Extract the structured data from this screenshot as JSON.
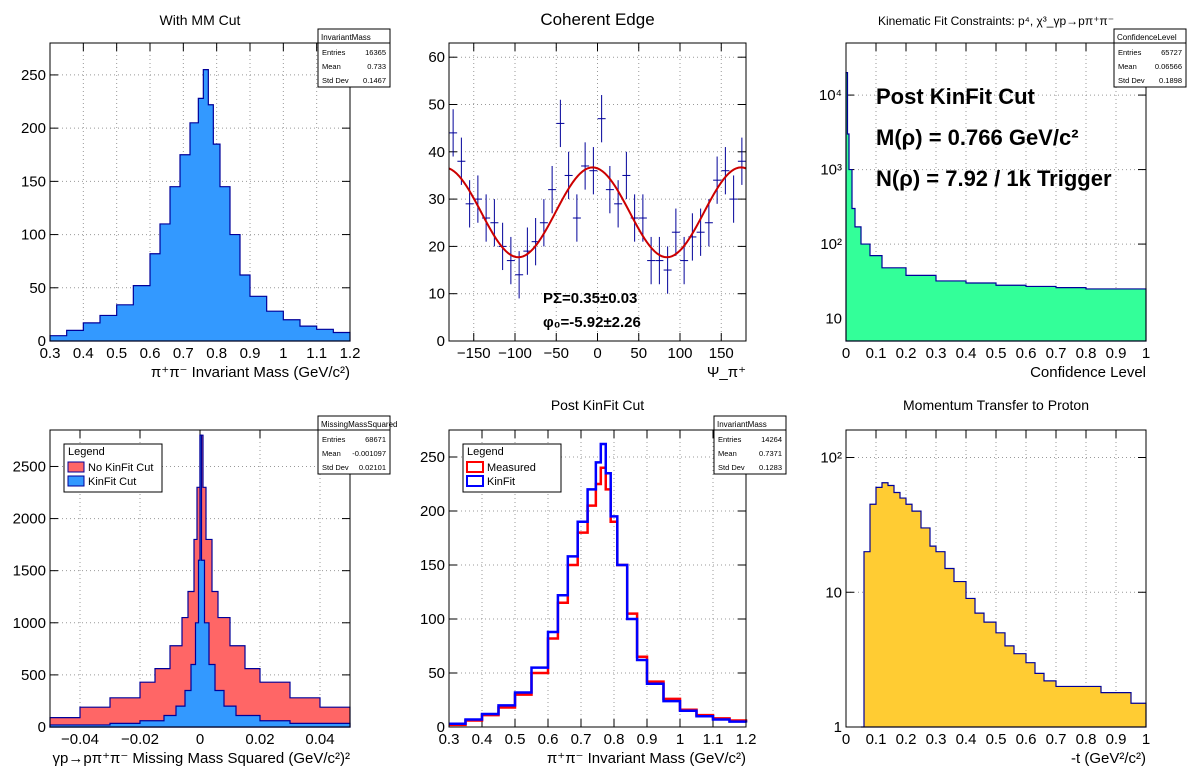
{
  "colors": {
    "blue_fill": "#3399ff",
    "blue_line": "#000099",
    "red_fill": "#ff6666",
    "red_line": "#cc0000",
    "green_fill": "#33ff99",
    "yellow_fill": "#ffcc33",
    "fit_line": "#cc0000",
    "measured": "#ff0000",
    "kinfit": "#0000ff"
  },
  "chart_data": [
    {
      "type": "bar",
      "title": "With MM Cut",
      "xlabel": "π⁺π⁻ Invariant Mass (GeV/c²)",
      "ylabel": "",
      "xlim": [
        0.3,
        1.2
      ],
      "ylim": [
        0,
        280
      ],
      "xticks": [
        "0.3",
        "0.4",
        "0.5",
        "0.6",
        "0.7",
        "0.8",
        "0.9",
        "1",
        "1.1",
        "1.2"
      ],
      "xtick_values": [
        0.3,
        0.4,
        0.5,
        0.6,
        0.7,
        0.8,
        0.9,
        1.0,
        1.1,
        1.2
      ],
      "yticks": [
        "0",
        "50",
        "100",
        "150",
        "200",
        "250"
      ],
      "ytick_values": [
        0,
        50,
        100,
        150,
        200,
        250
      ],
      "stats": {
        "name": "InvariantMass",
        "rows": [
          [
            "Entries",
            "16365"
          ],
          [
            "Mean",
            "0.733"
          ],
          [
            "Std Dev",
            "0.1467"
          ]
        ]
      },
      "series": [
        {
          "name": "",
          "fill": "#3399ff",
          "line": "#000099",
          "x": [
            0.3,
            0.35,
            0.4,
            0.45,
            0.5,
            0.55,
            0.6,
            0.63,
            0.66,
            0.69,
            0.72,
            0.745,
            0.76,
            0.775,
            0.79,
            0.81,
            0.84,
            0.87,
            0.9,
            0.95,
            1.0,
            1.05,
            1.1,
            1.15,
            1.2
          ],
          "values": [
            5,
            10,
            17,
            24,
            34,
            52,
            82,
            110,
            145,
            175,
            205,
            228,
            255,
            222,
            185,
            145,
            100,
            62,
            42,
            28,
            20,
            14,
            11,
            8,
            8
          ]
        }
      ]
    },
    {
      "type": "scatter",
      "title": "Coherent Edge",
      "xlabel": "Ψ_π⁺",
      "ylabel": "",
      "xlim": [
        -180,
        180
      ],
      "ylim": [
        0,
        63
      ],
      "xticks": [
        "−150",
        "−100",
        "−50",
        "0",
        "50",
        "100",
        "150"
      ],
      "xtick_values": [
        -150,
        -100,
        -50,
        0,
        50,
        100,
        150
      ],
      "yticks": [
        "0",
        "10",
        "20",
        "30",
        "40",
        "50",
        "60"
      ],
      "ytick_values": [
        0,
        10,
        20,
        30,
        40,
        50,
        60
      ],
      "annotations": [
        "PΣ=0.35±0.03",
        "φ₀=-5.92±2.26"
      ],
      "fit": {
        "offset": 27.2,
        "amplitude": 9.5,
        "phase_deg": -5.92
      },
      "series": [
        {
          "name": "",
          "color": "#000099",
          "x": [
            -175,
            -165,
            -155,
            -145,
            -135,
            -125,
            -115,
            -105,
            -95,
            -85,
            -75,
            -65,
            -55,
            -45,
            -35,
            -25,
            -15,
            -5,
            5,
            15,
            25,
            35,
            45,
            55,
            65,
            75,
            85,
            95,
            105,
            115,
            125,
            135,
            145,
            155,
            165,
            175
          ],
          "values": [
            44,
            38,
            29,
            30,
            26,
            25,
            20,
            17,
            14,
            19,
            21,
            25,
            32,
            46,
            35,
            26,
            37,
            36,
            47,
            32,
            29,
            35,
            26,
            26,
            17,
            17,
            15,
            23,
            17,
            22,
            23,
            25,
            34,
            36,
            30,
            38
          ],
          "err": 5
        }
      ]
    },
    {
      "type": "bar",
      "title": "Kinematic Fit Constraints: p⁴, χ³_γp→pπ⁺π⁻",
      "xlabel": "Confidence Level",
      "ylabel": "",
      "log_y": true,
      "xlim": [
        0,
        1
      ],
      "ylim": [
        5,
        50000
      ],
      "xticks": [
        "0",
        "0.1",
        "0.2",
        "0.3",
        "0.4",
        "0.5",
        "0.6",
        "0.7",
        "0.8",
        "0.9",
        "1"
      ],
      "xtick_values": [
        0,
        0.1,
        0.2,
        0.3,
        0.4,
        0.5,
        0.6,
        0.7,
        0.8,
        0.9,
        1.0
      ],
      "yticks": [
        "10",
        "10²",
        "10³",
        "10⁴"
      ],
      "ytick_values": [
        10,
        100,
        1000,
        10000
      ],
      "stats": {
        "name": "ConfidenceLevel",
        "rows": [
          [
            "Entries",
            "65727"
          ],
          [
            "Mean",
            "0.06566"
          ],
          [
            "Std Dev",
            "0.1898"
          ]
        ]
      },
      "annotations": [
        "Post KinFit Cut",
        "M(ρ) = 0.766 GeV/c²",
        "N(ρ) = 7.92 / 1k Trigger"
      ],
      "series": [
        {
          "name": "",
          "fill": "#33ff99",
          "line": "#000099",
          "x": [
            0.0,
            0.005,
            0.01,
            0.02,
            0.03,
            0.05,
            0.08,
            0.12,
            0.2,
            0.3,
            0.4,
            0.5,
            0.6,
            0.7,
            0.8,
            0.9,
            1.0
          ],
          "values": [
            20000,
            3000,
            1000,
            300,
            170,
            100,
            70,
            48,
            38,
            32,
            30,
            28,
            27,
            26,
            25,
            25,
            24
          ]
        }
      ]
    },
    {
      "type": "bar",
      "title": "",
      "xlabel": "γp→pπ⁺π⁻ Missing Mass Squared (GeV/c²)²",
      "ylabel": "",
      "xlim": [
        -0.05,
        0.05
      ],
      "ylim": [
        0,
        2850
      ],
      "xticks": [
        "−0.04",
        "−0.02",
        "0",
        "0.02",
        "0.04"
      ],
      "xtick_values": [
        -0.04,
        -0.02,
        0,
        0.02,
        0.04
      ],
      "yticks": [
        "0",
        "500",
        "1000",
        "1500",
        "2000",
        "2500"
      ],
      "ytick_values": [
        0,
        500,
        1000,
        1500,
        2000,
        2500
      ],
      "stats": {
        "name": "MissingMassSquared",
        "rows": [
          [
            "Entries",
            "68671"
          ],
          [
            "Mean",
            "-0.001097"
          ],
          [
            "Std Dev",
            "0.02101"
          ]
        ]
      },
      "legend": {
        "title": "Legend",
        "placement": "top-left"
      },
      "series": [
        {
          "name": "No KinFit Cut",
          "fill": "#ff6666",
          "line": "#000099",
          "x": [
            -0.05,
            -0.04,
            -0.03,
            -0.02,
            -0.015,
            -0.01,
            -0.006,
            -0.004,
            -0.002,
            -0.001,
            0,
            0.001,
            0.002,
            0.004,
            0.006,
            0.01,
            0.015,
            0.02,
            0.03,
            0.04,
            0.05
          ],
          "values": [
            90,
            190,
            280,
            430,
            560,
            780,
            1050,
            1300,
            1800,
            2300,
            2800,
            2300,
            1800,
            1300,
            1050,
            780,
            560,
            430,
            280,
            190,
            140
          ]
        },
        {
          "name": "KinFit Cut",
          "fill": "#3399ff",
          "line": "#000099",
          "x": [
            -0.05,
            -0.03,
            -0.02,
            -0.012,
            -0.008,
            -0.005,
            -0.003,
            -0.0015,
            -0.0005,
            0,
            0.0005,
            0.0015,
            0.003,
            0.005,
            0.008,
            0.012,
            0.02,
            0.03,
            0.05
          ],
          "values": [
            20,
            35,
            60,
            110,
            200,
            350,
            600,
            1000,
            1600,
            2800,
            1600,
            1000,
            600,
            350,
            200,
            110,
            60,
            35,
            20
          ]
        }
      ]
    },
    {
      "type": "line",
      "title": "Post KinFit Cut",
      "xlabel": "π⁺π⁻ Invariant Mass (GeV/c²)",
      "ylabel": "",
      "xlim": [
        0.3,
        1.2
      ],
      "ylim": [
        0,
        275
      ],
      "xticks": [
        "0.3",
        "0.4",
        "0.5",
        "0.6",
        "0.7",
        "0.8",
        "0.9",
        "1",
        "1.1",
        "1.2"
      ],
      "xtick_values": [
        0.3,
        0.4,
        0.5,
        0.6,
        0.7,
        0.8,
        0.9,
        1.0,
        1.1,
        1.2
      ],
      "yticks": [
        "0",
        "50",
        "100",
        "150",
        "200",
        "250"
      ],
      "ytick_values": [
        0,
        50,
        100,
        150,
        200,
        250
      ],
      "stats": {
        "name": "InvariantMass",
        "rows": [
          [
            "Entries",
            "14264"
          ],
          [
            "Mean",
            "0.7371"
          ],
          [
            "Std Dev",
            "0.1283"
          ]
        ]
      },
      "legend": {
        "title": "Legend",
        "placement": "top-left"
      },
      "series": [
        {
          "name": "Measured",
          "color": "#ff0000",
          "x": [
            0.3,
            0.35,
            0.4,
            0.45,
            0.5,
            0.55,
            0.6,
            0.63,
            0.66,
            0.69,
            0.72,
            0.745,
            0.76,
            0.775,
            0.79,
            0.81,
            0.84,
            0.87,
            0.9,
            0.95,
            1.0,
            1.05,
            1.1,
            1.15,
            1.2
          ],
          "values": [
            2,
            6,
            11,
            18,
            30,
            50,
            82,
            115,
            150,
            180,
            205,
            225,
            240,
            220,
            190,
            150,
            105,
            65,
            42,
            26,
            16,
            11,
            8,
            6,
            5
          ]
        },
        {
          "name": "KinFit",
          "color": "#0000ff",
          "x": [
            0.3,
            0.35,
            0.4,
            0.45,
            0.5,
            0.55,
            0.6,
            0.63,
            0.66,
            0.69,
            0.72,
            0.745,
            0.76,
            0.775,
            0.79,
            0.81,
            0.84,
            0.87,
            0.9,
            0.95,
            1.0,
            1.05,
            1.1,
            1.15,
            1.2
          ],
          "values": [
            3,
            7,
            12,
            20,
            32,
            55,
            88,
            122,
            158,
            190,
            220,
            245,
            262,
            235,
            195,
            150,
            100,
            62,
            40,
            24,
            15,
            10,
            7,
            5,
            4
          ]
        }
      ]
    },
    {
      "type": "bar",
      "title": "Momentum Transfer to Proton",
      "xlabel": "-t (GeV²/c²)",
      "ylabel": "",
      "log_y": true,
      "xlim": [
        0,
        1
      ],
      "ylim": [
        1,
        160
      ],
      "xticks": [
        "0",
        "0.1",
        "0.2",
        "0.3",
        "0.4",
        "0.5",
        "0.6",
        "0.7",
        "0.8",
        "0.9",
        "1"
      ],
      "xtick_values": [
        0,
        0.1,
        0.2,
        0.3,
        0.4,
        0.5,
        0.6,
        0.7,
        0.8,
        0.9,
        1.0
      ],
      "yticks": [
        "1",
        "10",
        "10²"
      ],
      "ytick_values": [
        1,
        10,
        100
      ],
      "series": [
        {
          "name": "",
          "fill": "#ffcc33",
          "line": "#000099",
          "x": [
            0.05,
            0.06,
            0.08,
            0.1,
            0.12,
            0.14,
            0.16,
            0.18,
            0.2,
            0.22,
            0.25,
            0.28,
            0.3,
            0.33,
            0.36,
            0.4,
            0.43,
            0.46,
            0.5,
            0.53,
            0.56,
            0.6,
            0.63,
            0.66,
            0.7,
            0.75,
            0.8,
            0.85,
            0.9,
            0.95,
            1.0
          ],
          "values": [
            1,
            20,
            45,
            60,
            65,
            62,
            55,
            50,
            45,
            40,
            30,
            22,
            20,
            15,
            12,
            9,
            7,
            6,
            5,
            4,
            3.5,
            3,
            2.5,
            2.2,
            2,
            2,
            2,
            1.8,
            1.8,
            1.5,
            1.5
          ]
        }
      ]
    }
  ]
}
